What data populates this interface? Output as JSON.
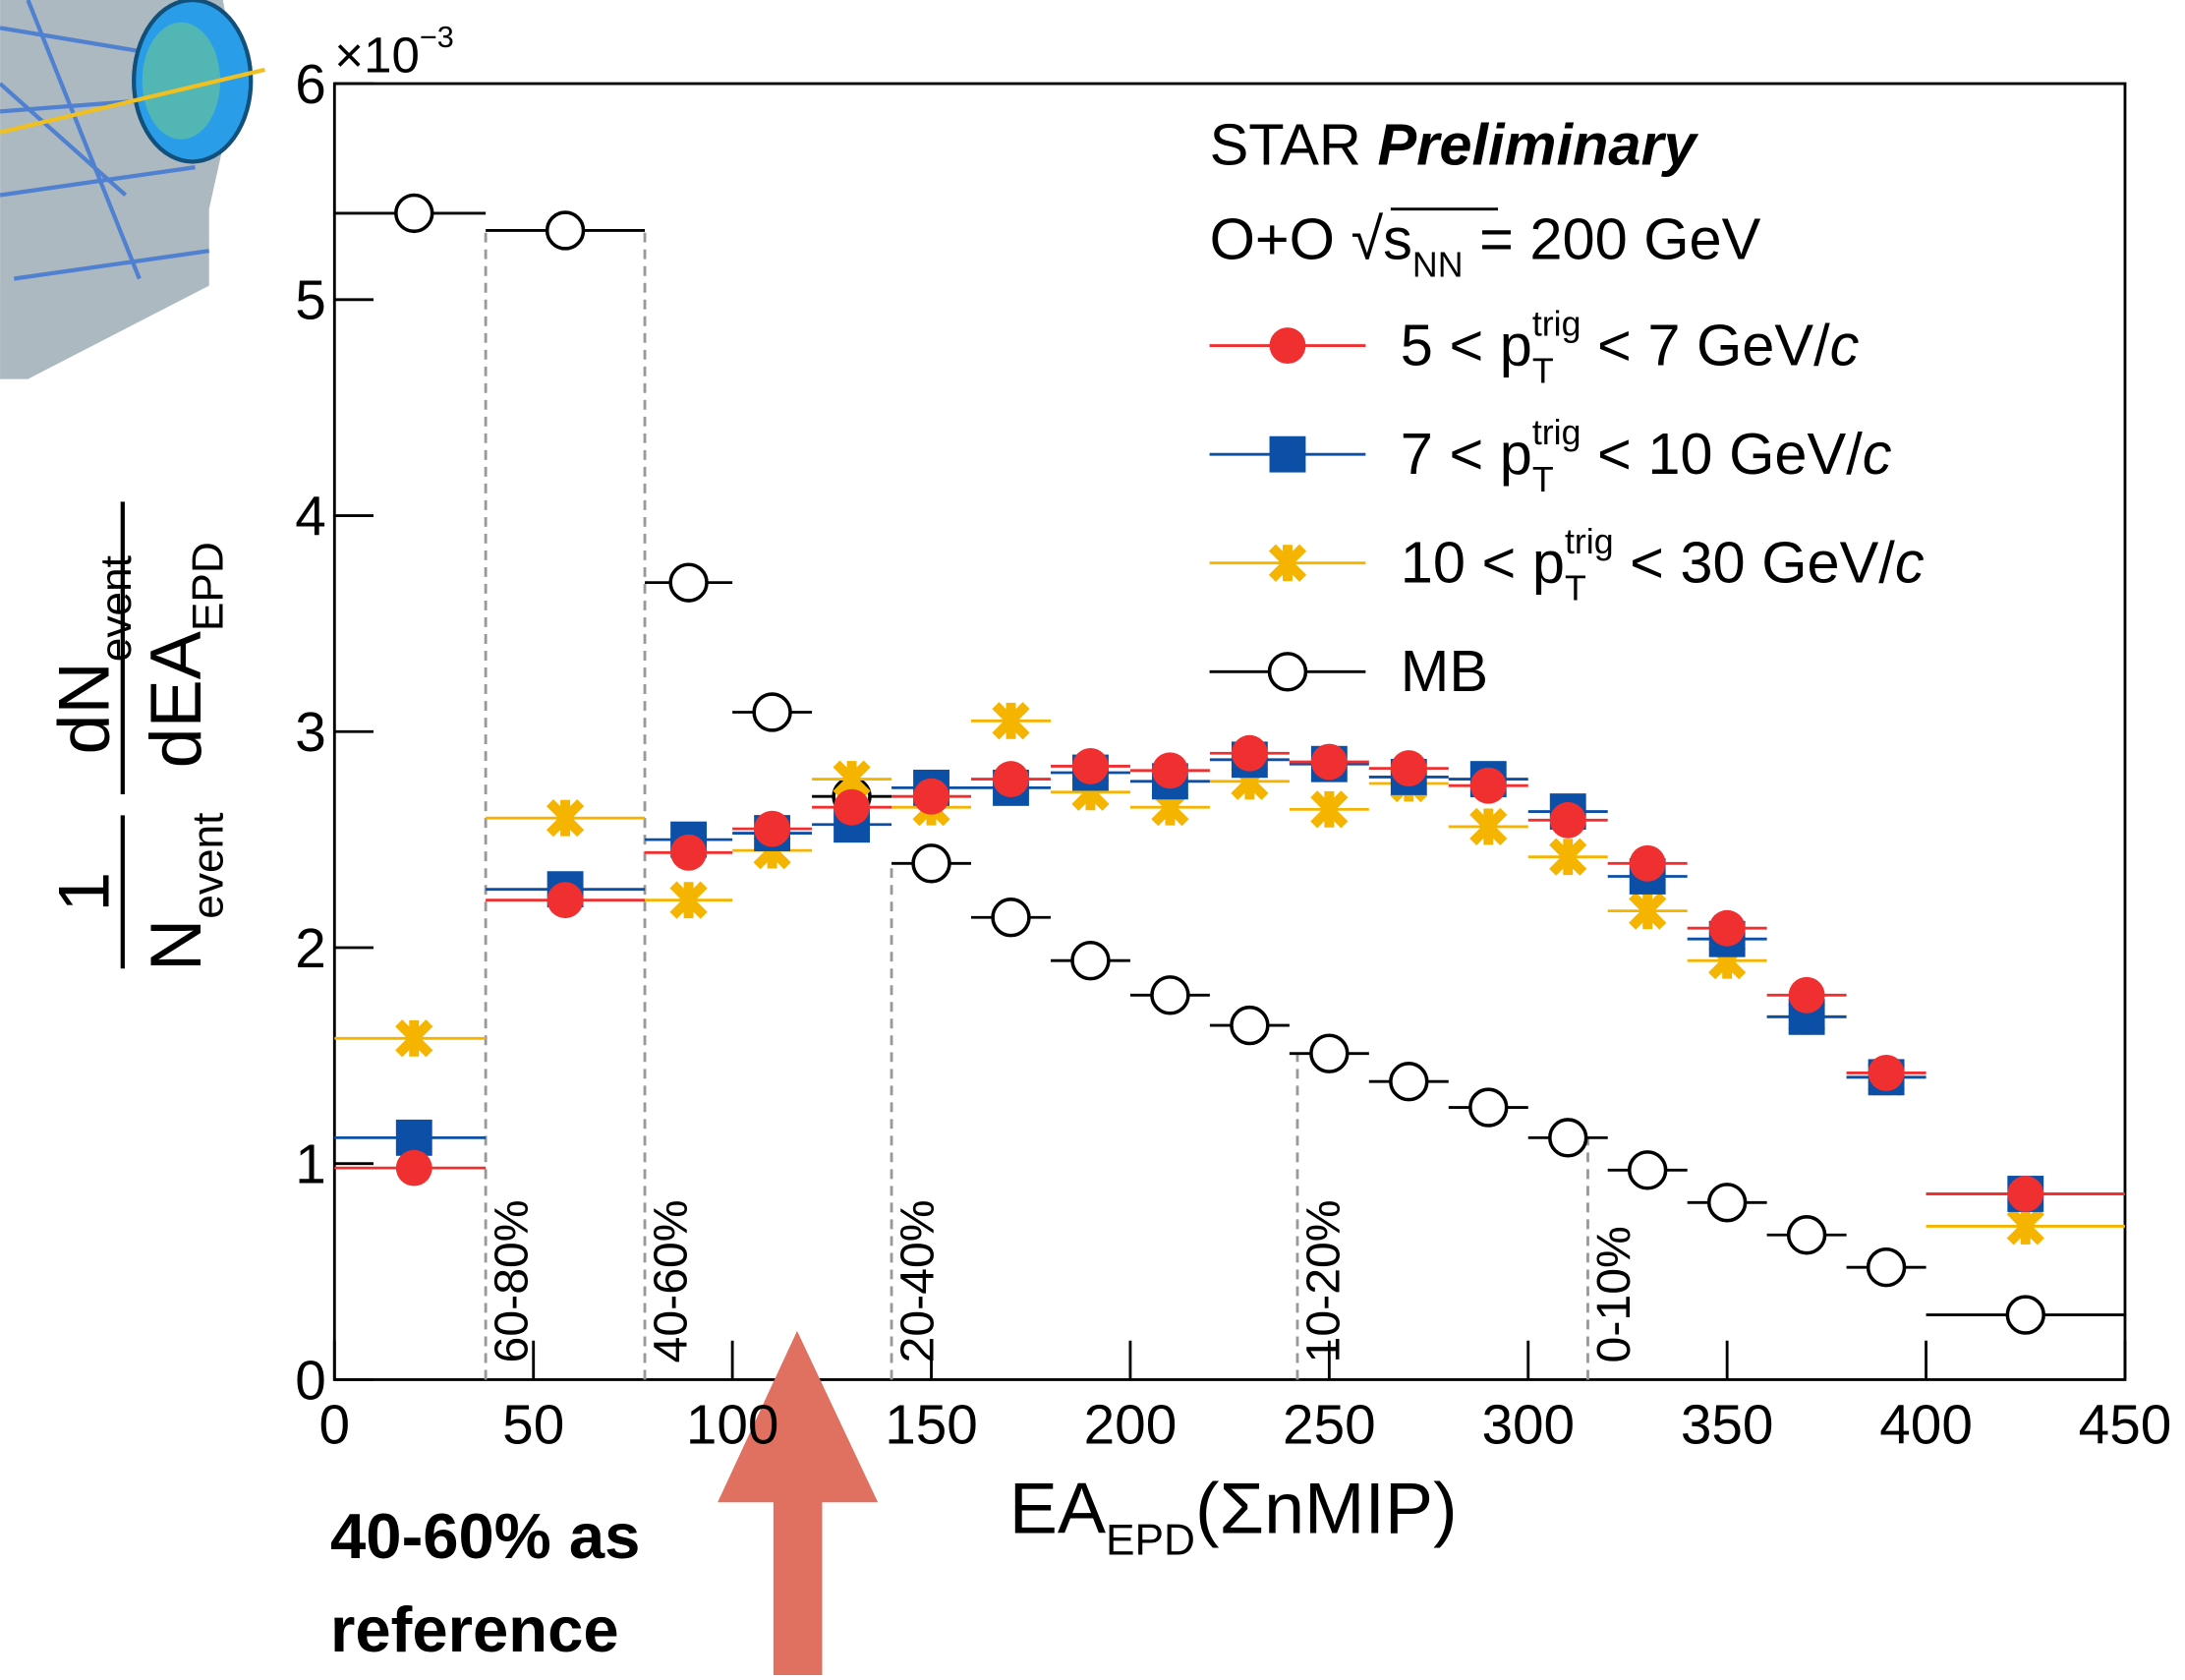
{
  "chart_data": {
    "type": "scatter",
    "title": [
      {
        "text": "STAR "
      },
      {
        "bold_italic": "Preliminary"
      }
    ],
    "subtitle": [
      {
        "text": "O+O  √s"
      },
      {
        "sub": "NN"
      },
      {
        "text": " = 200 GeV"
      }
    ],
    "x_label": [
      {
        "text": "EA"
      },
      {
        "sub": "EPD"
      },
      {
        "text": "(ΣnMIP)"
      }
    ],
    "y_label": {
      "numerator_left": "1",
      "denominator_left": [
        {
          "text": "N"
        },
        {
          "sub": "event"
        }
      ],
      "numerator_right": [
        {
          "text": "dN"
        },
        {
          "sub": "event"
        }
      ],
      "denominator_right": [
        {
          "text": "dEA"
        },
        {
          "sub": "EPD"
        }
      ]
    },
    "y_multiplier": [
      {
        "text": "×10"
      },
      {
        "sup": "−3"
      }
    ],
    "xlim": [
      0,
      450
    ],
    "xticks": [
      0,
      50,
      100,
      150,
      200,
      250,
      300,
      350,
      400,
      450
    ],
    "ylim": [
      0,
      6
    ],
    "yticks": [
      0,
      1,
      2,
      3,
      4,
      5,
      6
    ],
    "x": [
      20,
      58,
      89,
      110,
      130,
      150,
      170,
      190,
      210,
      230,
      250,
      270,
      290,
      310,
      330,
      350,
      370,
      390,
      425
    ],
    "bins": [
      0,
      38,
      78,
      100,
      120,
      140,
      160,
      180,
      200,
      220,
      240,
      260,
      280,
      300,
      320,
      340,
      360,
      380,
      400,
      450
    ],
    "series": [
      {
        "name": [
          {
            "text": "5 < p"
          },
          {
            "sub": "T"
          },
          {
            "sup": "trig"
          },
          {
            "text": " < 7 GeV/"
          },
          {
            "italic": "c"
          }
        ],
        "color": "#f03030",
        "marker": "circle",
        "values": [
          0.98,
          2.22,
          2.44,
          2.55,
          2.65,
          2.7,
          2.78,
          2.84,
          2.82,
          2.9,
          2.86,
          2.83,
          2.75,
          2.59,
          2.39,
          2.09,
          1.78,
          1.42,
          0.86
        ]
      },
      {
        "name": [
          {
            "text": "7 < p"
          },
          {
            "sub": "T"
          },
          {
            "sup": "trig"
          },
          {
            "text": " < 10 GeV/"
          },
          {
            "italic": "c"
          }
        ],
        "color": "#0b4fa6",
        "marker": "square",
        "values": [
          1.12,
          2.27,
          2.5,
          2.53,
          2.57,
          2.74,
          2.74,
          2.81,
          2.77,
          2.87,
          2.85,
          2.79,
          2.78,
          2.63,
          2.33,
          2.04,
          1.68,
          1.4,
          0.86
        ]
      },
      {
        "name": [
          {
            "text": "10 < p"
          },
          {
            "sub": "T"
          },
          {
            "sup": "trig"
          },
          {
            "text": " < 30 GeV/"
          },
          {
            "italic": "c"
          }
        ],
        "color": "#f5b400",
        "marker": "star",
        "values": [
          1.58,
          2.6,
          2.22,
          2.45,
          2.78,
          2.65,
          3.05,
          2.72,
          2.65,
          2.77,
          2.64,
          2.76,
          2.56,
          2.42,
          2.17,
          1.94,
          1.68,
          1.4,
          0.71
        ]
      },
      {
        "name": [
          {
            "text": "MB"
          }
        ],
        "color": "#000000",
        "marker": "open-circle",
        "values": [
          5.4,
          5.32,
          3.69,
          3.09,
          2.7,
          2.39,
          2.14,
          1.94,
          1.78,
          1.64,
          1.51,
          1.38,
          1.26,
          1.12,
          0.97,
          0.82,
          0.67,
          0.52,
          0.3
        ]
      }
    ],
    "centrality": [
      {
        "label": "60-80%",
        "x": 38,
        "y": 5.32
      },
      {
        "label": "40-60%",
        "x": 78,
        "y": 5.32
      },
      {
        "label": "20-40%",
        "x": 140,
        "y": 2.39
      },
      {
        "label": "10-20%",
        "x": 242,
        "y": 1.51
      },
      {
        "label": "0-10%",
        "x": 315,
        "y": 1.12
      }
    ],
    "annotation": [
      "40-60% as",
      "reference"
    ],
    "annotation_color": "#8e1a4e"
  }
}
